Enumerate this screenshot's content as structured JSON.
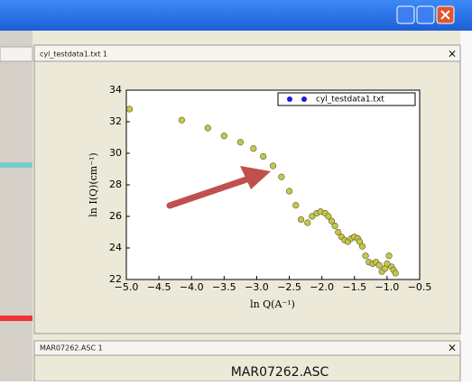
{
  "window": {
    "panel_title": "cyl_testdata1.txt 1",
    "close": "×",
    "panel2_title": "MAR07262.ASC 1",
    "panel2_close": "×",
    "panel2_heading": "MAR07262.ASC"
  },
  "chart_data": {
    "type": "scatter",
    "xlabel": "ln Q(A⁻¹)",
    "ylabel": "ln I(Q)(cm⁻¹)",
    "xlim": [
      -5.0,
      -0.5
    ],
    "ylim": [
      22,
      34
    ],
    "xticks": [
      {
        "value": -5.0,
        "label": "−5.0"
      },
      {
        "value": -4.5,
        "label": "−4.5"
      },
      {
        "value": -4.0,
        "label": "−4.0"
      },
      {
        "value": -3.5,
        "label": "−3.5"
      },
      {
        "value": -3.0,
        "label": "−3.0"
      },
      {
        "value": -2.5,
        "label": "−2.5"
      },
      {
        "value": -2.0,
        "label": "−2.0"
      },
      {
        "value": -1.5,
        "label": "−1.5"
      },
      {
        "value": -1.0,
        "label": "−1.0"
      },
      {
        "value": -0.5,
        "label": "−0.5"
      }
    ],
    "yticks": [
      22,
      24,
      26,
      28,
      30,
      32,
      34
    ],
    "legend_position": "upper right",
    "series": [
      {
        "name": "cyl_testdata1.txt",
        "color": "#c8c83c",
        "legend_color": "#1a1ad8",
        "x": [
          -4.95,
          -4.15,
          -3.75,
          -3.5,
          -3.25,
          -3.05,
          -2.9,
          -2.75,
          -2.62,
          -2.5,
          -2.4,
          -2.32,
          -2.22,
          -2.15,
          -2.08,
          -2.02,
          -1.95,
          -1.9,
          -1.85,
          -1.8,
          -1.75,
          -1.7,
          -1.65,
          -1.6,
          -1.55,
          -1.5,
          -1.45,
          -1.42,
          -1.38,
          -1.33,
          -1.28,
          -1.22,
          -1.17,
          -1.12,
          -1.08,
          -1.03,
          -1.0,
          -0.97,
          -0.93,
          -0.9,
          -0.87
        ],
        "values": [
          32.8,
          32.1,
          31.6,
          31.1,
          30.7,
          30.3,
          29.8,
          29.2,
          28.5,
          27.6,
          26.7,
          25.8,
          25.6,
          26.0,
          26.2,
          26.3,
          26.2,
          26.0,
          25.7,
          25.4,
          25.0,
          24.7,
          24.5,
          24.4,
          24.6,
          24.7,
          24.6,
          24.4,
          24.1,
          23.5,
          23.1,
          23.0,
          23.1,
          22.9,
          22.5,
          22.7,
          23.0,
          23.5,
          22.8,
          22.6,
          22.4
        ]
      }
    ]
  }
}
